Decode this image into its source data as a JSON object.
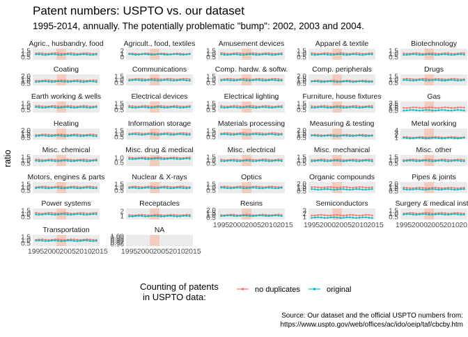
{
  "chart_data": {
    "type": "line",
    "title": "Patent numbers: USPTO vs. our dataset",
    "subtitle": "1995-2014, annually. The potentially problematic \"bump\": 2002, 2003 and 2004.",
    "ylabel": "ratio",
    "xlabel": "",
    "x_ticks": [
      "1995",
      "2000",
      "2005",
      "2010",
      "2015"
    ],
    "xlim": [
      1994,
      2015
    ],
    "highlight_years": [
      2002,
      2003,
      2004
    ],
    "legend": {
      "title_line1": "Counting of patents",
      "title_line2": "in USPTO data:",
      "position": "bottom"
    },
    "series_def": [
      {
        "name": "no duplicates",
        "color": "#F8766D"
      },
      {
        "name": "original",
        "color": "#00BFC4"
      }
    ],
    "caption_line1": "Source: Our dataset and the official USPTO numbers from:",
    "caption_line2": "https://www.uspto.gov/web/offices/ac/ido/oeip/taf/cbcby.htm",
    "facets": [
      {
        "label": "Agric., husbandry, food",
        "yticks": [
          "1.5",
          "1.0",
          "0.5"
        ],
        "ylim": [
          0.3,
          1.7
        ],
        "no_duplicates": 1.1,
        "original": 0.95
      },
      {
        "label": "Agricult., food, textiles",
        "yticks": [
          "2",
          "1",
          "0"
        ],
        "ylim": [
          -0.2,
          2.2
        ],
        "no_duplicates": 1.1,
        "original": 0.95
      },
      {
        "label": "Amusement devices",
        "yticks": [
          "1.5",
          "1.0",
          "0.5"
        ],
        "ylim": [
          0.3,
          1.7
        ],
        "no_duplicates": 1.1,
        "original": 0.95
      },
      {
        "label": "Apparel & textile",
        "yticks": [
          "1.5",
          "1.0",
          "0.5"
        ],
        "ylim": [
          0.3,
          1.7
        ],
        "no_duplicates": 1.1,
        "original": 0.95
      },
      {
        "label": "Biotechnology",
        "yticks": [
          "1.5",
          "1.0",
          "0.5"
        ],
        "ylim": [
          0.3,
          1.7
        ],
        "no_duplicates": 1.1,
        "original": 0.95
      },
      {
        "label": "Coating",
        "yticks": [
          "2.0",
          "1.5",
          "1.0",
          "0.5"
        ],
        "ylim": [
          0.3,
          2.2
        ],
        "no_duplicates": 1.15,
        "original": 0.95
      },
      {
        "label": "Communications",
        "yticks": [
          "1.5",
          "1.0",
          "0.5"
        ],
        "ylim": [
          0.3,
          1.7
        ],
        "no_duplicates": 1.1,
        "original": 0.95
      },
      {
        "label": "Comp. hardw. & softw.",
        "yticks": [
          "1.5",
          "1.0",
          "0.5"
        ],
        "ylim": [
          0.3,
          1.7
        ],
        "no_duplicates": 1.1,
        "original": 0.95
      },
      {
        "label": "Comp. peripherals",
        "yticks": [
          "2.0",
          "1.5",
          "1.0",
          "0.5"
        ],
        "ylim": [
          0.3,
          2.2
        ],
        "no_duplicates": 1.1,
        "original": 0.95
      },
      {
        "label": "Drugs",
        "yticks": [
          "1.5",
          "1.0",
          "0.5"
        ],
        "ylim": [
          0.3,
          1.7
        ],
        "no_duplicates": 1.1,
        "original": 0.95
      },
      {
        "label": "Earth working & wells",
        "yticks": [
          "1.5",
          "1.0",
          "0.5"
        ],
        "ylim": [
          0.3,
          1.7
        ],
        "no_duplicates": 1.1,
        "original": 0.95
      },
      {
        "label": "Electrical devices",
        "yticks": [
          "1.5",
          "1.0",
          "0.5"
        ],
        "ylim": [
          0.3,
          1.7
        ],
        "no_duplicates": 1.1,
        "original": 0.95
      },
      {
        "label": "Electrical lighting",
        "yticks": [
          "1.5",
          "1.0",
          "0.5"
        ],
        "ylim": [
          0.3,
          1.7
        ],
        "no_duplicates": 1.1,
        "original": 0.95
      },
      {
        "label": "Furniture, house fixtures",
        "yticks": [
          "1.5",
          "1.0",
          "0.5"
        ],
        "ylim": [
          0.3,
          1.7
        ],
        "no_duplicates": 1.1,
        "original": 0.95
      },
      {
        "label": "Gas",
        "yticks": [
          "3.5",
          "2.5",
          "1.5",
          "0.5"
        ],
        "ylim": [
          0.3,
          3.7
        ],
        "no_duplicates": 1.8,
        "original": 1.0
      },
      {
        "label": "Heating",
        "yticks": [
          "2.0",
          "1.5",
          "1.0",
          "0.5"
        ],
        "ylim": [
          0.3,
          2.2
        ],
        "no_duplicates": 1.15,
        "original": 0.95
      },
      {
        "label": "Information storage",
        "yticks": [
          "1.5",
          "1.0",
          "0.5"
        ],
        "ylim": [
          0.3,
          1.7
        ],
        "no_duplicates": 1.1,
        "original": 0.95
      },
      {
        "label": "Materials processing",
        "yticks": [
          "1.5",
          "1.0",
          "0.5"
        ],
        "ylim": [
          0.3,
          1.7
        ],
        "no_duplicates": 1.1,
        "original": 0.95
      },
      {
        "label": "Measuring & testing",
        "yticks": [
          "2.0",
          "1.5",
          "1.0",
          "0.5"
        ],
        "ylim": [
          0.3,
          2.2
        ],
        "no_duplicates": 1.1,
        "original": 0.95
      },
      {
        "label": "Metal working",
        "yticks": [
          "4",
          "3",
          "2",
          "1"
        ],
        "ylim": [
          0.5,
          4.2
        ],
        "no_duplicates": 1.3,
        "original": 1.0
      },
      {
        "label": "Misc. chemical",
        "yticks": [
          "1.5",
          "1.0",
          "0.5"
        ],
        "ylim": [
          0.3,
          1.7
        ],
        "no_duplicates": 1.1,
        "original": 0.95
      },
      {
        "label": "Misc. drug & medical",
        "yticks": [
          "1.0",
          "0.5"
        ],
        "ylim": [
          0.3,
          1.3
        ],
        "no_duplicates": 1.05,
        "original": 0.95
      },
      {
        "label": "Misc. electrical",
        "yticks": [
          "1.5",
          "1.0",
          "0.5"
        ],
        "ylim": [
          0.3,
          1.7
        ],
        "no_duplicates": 1.1,
        "original": 0.95
      },
      {
        "label": "Misc. mechanical",
        "yticks": [
          "1.5",
          "1.0",
          "0.5"
        ],
        "ylim": [
          0.3,
          1.7
        ],
        "no_duplicates": 1.1,
        "original": 0.95
      },
      {
        "label": "Misc. other",
        "yticks": [
          "1.5",
          "1.0",
          "0.5"
        ],
        "ylim": [
          0.3,
          1.7
        ],
        "no_duplicates": 1.1,
        "original": 0.95
      },
      {
        "label": "Motors, engines & parts",
        "yticks": [
          "1.5",
          "1.0",
          "0.5"
        ],
        "ylim": [
          0.3,
          1.7
        ],
        "no_duplicates": 1.1,
        "original": 0.95
      },
      {
        "label": "Nuclear & X-rays",
        "yticks": [
          "1.5",
          "1.0",
          "0.5"
        ],
        "ylim": [
          0.3,
          1.7
        ],
        "no_duplicates": 1.1,
        "original": 0.95
      },
      {
        "label": "Optics",
        "yticks": [
          "1.5",
          "1.0",
          "0.5"
        ],
        "ylim": [
          0.3,
          1.7
        ],
        "no_duplicates": 1.1,
        "original": 0.95
      },
      {
        "label": "Organic compounds",
        "yticks": [
          "2.0",
          "1.5",
          "1.0",
          "0.5"
        ],
        "ylim": [
          0.3,
          2.2
        ],
        "no_duplicates": 1.3,
        "original": 0.95
      },
      {
        "label": "Pipes & joints",
        "yticks": [
          "2.0",
          "1.5",
          "1.0",
          "0.5"
        ],
        "ylim": [
          0.3,
          2.2
        ],
        "no_duplicates": 1.2,
        "original": 0.95
      },
      {
        "label": "Power systems",
        "yticks": [
          "1.5",
          "1.0",
          "0.5"
        ],
        "ylim": [
          0.3,
          1.7
        ],
        "no_duplicates": 1.1,
        "original": 0.95
      },
      {
        "label": "Receptacles",
        "yticks": [
          "2",
          "1"
        ],
        "ylim": [
          0.3,
          2.4
        ],
        "no_duplicates": 1.15,
        "original": 0.95
      },
      {
        "label": "Resins",
        "yticks": [
          "2.0",
          "1.5",
          "1.0",
          "0.5"
        ],
        "ylim": [
          0.3,
          2.2
        ],
        "no_duplicates": 1.1,
        "original": 0.95
      },
      {
        "label": "Semiconductors",
        "yticks": [
          "3",
          "2",
          "1"
        ],
        "ylim": [
          0.5,
          3.3
        ],
        "no_duplicates": 1.6,
        "original": 1.0
      },
      {
        "label": "Surgery & medical instr.",
        "yticks": [
          "1.5",
          "1.0",
          "0.5"
        ],
        "ylim": [
          0.3,
          1.7
        ],
        "no_duplicates": 1.1,
        "original": 0.95
      },
      {
        "label": "Transportation",
        "yticks": [
          "1.5",
          "1.0",
          "0.5"
        ],
        "ylim": [
          0.3,
          1.7
        ],
        "no_duplicates": 1.1,
        "original": 0.95
      },
      {
        "label": "NA",
        "yticks": [
          "1.00",
          "0.99",
          "0.98",
          "0.97",
          "0.96"
        ],
        "ylim": [
          0.955,
          1.005
        ],
        "no_duplicates": null,
        "original": null
      }
    ]
  }
}
